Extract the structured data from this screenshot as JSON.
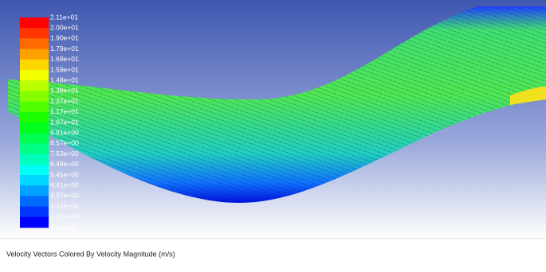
{
  "legend": {
    "labels": [
      "2.11e+01",
      "2.00e+01",
      "1.90e+01",
      "1.79e+01",
      "1.69e+01",
      "1.59e+01",
      "1.48e+01",
      "1.38e+01",
      "1.27e+01",
      "1.17e+01",
      "1.07e+01",
      "9.61e+00",
      "8.57e+00",
      "7.53e+00",
      "6.49e+00",
      "5.45e+00",
      "4.41e+00",
      "3.37e+00",
      "2.33e+00",
      "1.29e+00",
      "2.46e-01"
    ]
  },
  "caption": "Velocity Vectors Colored By Velocity Magnitude (m/s)"
}
